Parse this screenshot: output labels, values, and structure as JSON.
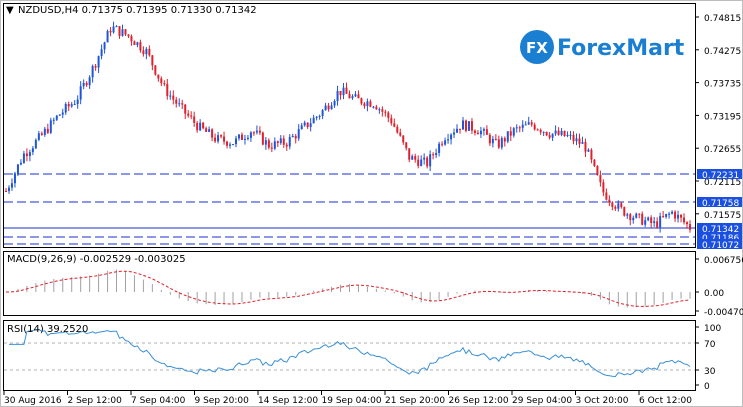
{
  "header": {
    "symbol_line": "NZDUSD,H4  0.71375 0.71395 0.71330 0.71342",
    "arrow": "▼"
  },
  "logo": {
    "mark": "FX",
    "text": "ForexMart",
    "mark_color": "#1b7fd1",
    "text_color": "#1b7fd1"
  },
  "colors": {
    "up": "#1f55d6",
    "down": "#e0202b",
    "level": "#1a2fd0",
    "macd_hist": "#a0a0a0",
    "macd_signal": "#e0202b",
    "rsi": "#3a90d8",
    "label_bg": "#1b4fe0"
  },
  "price_axis": {
    "ticks": [
      "0.74815",
      "0.74275",
      "0.73735",
      "0.73195",
      "0.72655",
      "0.72115",
      "0.71575"
    ],
    "highlight_levels": [
      {
        "value": "0.72231",
        "style": "dashed"
      },
      {
        "value": "0.71758",
        "style": "dashed"
      },
      {
        "value": "0.71342",
        "style": "solid"
      },
      {
        "value": "0.71186",
        "style": "dashed"
      },
      {
        "value": "0.71072",
        "style": "dashed"
      }
    ]
  },
  "macd": {
    "label": "MACD(9,26,9) -0.002529 -0.003025",
    "ticks": [
      "0.006756",
      "0.00",
      "-0.004704"
    ]
  },
  "rsi": {
    "label": "RSI(14) 39.2520",
    "ticks": [
      "100",
      "70",
      "30",
      "0"
    ],
    "levels": [
      70,
      30
    ]
  },
  "time_axis": [
    "30 Aug 2016",
    "2 Sep 12:00",
    "7 Sep 04:00",
    "9 Sep 20:00",
    "14 Sep 12:00",
    "19 Sep 04:00",
    "21 Sep 20:00",
    "26 Sep 12:00",
    "29 Sep 04:00",
    "3 Oct 20:00",
    "6 Oct 12:00"
  ],
  "chart_data": {
    "type": "candlestick",
    "symbol": "NZDUSD",
    "timeframe": "H4",
    "close_path": [
      0.7195,
      0.7255,
      0.7285,
      0.732,
      0.7345,
      0.74,
      0.7465,
      0.745,
      0.7425,
      0.7365,
      0.733,
      0.73,
      0.728,
      0.7275,
      0.7295,
      0.727,
      0.7275,
      0.73,
      0.7325,
      0.736,
      0.7345,
      0.734,
      0.731,
      0.725,
      0.724,
      0.7285,
      0.7305,
      0.7295,
      0.727,
      0.7295,
      0.7305,
      0.729,
      0.7285,
      0.727,
      0.7195,
      0.7165,
      0.715,
      0.714,
      0.716,
      0.7135
    ]
  }
}
